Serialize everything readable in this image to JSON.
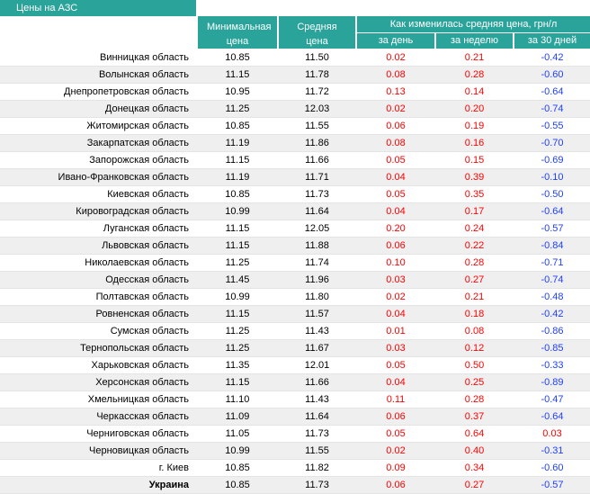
{
  "header": {
    "title": "Цены на АЗС",
    "min": "Минимальная цена",
    "avg": "Средняя цена",
    "change": "Как изменилась средняя цена, грн/л",
    "day": "за день",
    "week": "за неделю",
    "month": "за 30 дней"
  },
  "table": {
    "rows": [
      [
        "Винницкая область",
        "10.85",
        "11.50",
        "0.02",
        "0.21",
        "-0.42"
      ],
      [
        "Волынская область",
        "11.15",
        "11.78",
        "0.08",
        "0.28",
        "-0.60"
      ],
      [
        "Днепропетровская область",
        "10.95",
        "11.72",
        "0.13",
        "0.14",
        "-0.64"
      ],
      [
        "Донецкая область",
        "11.25",
        "12.03",
        "0.02",
        "0.20",
        "-0.74"
      ],
      [
        "Житомирская область",
        "10.85",
        "11.55",
        "0.06",
        "0.19",
        "-0.55"
      ],
      [
        "Закарпатская область",
        "11.19",
        "11.86",
        "0.08",
        "0.16",
        "-0.70"
      ],
      [
        "Запорожская область",
        "11.15",
        "11.66",
        "0.05",
        "0.15",
        "-0.69"
      ],
      [
        "Ивано-Франковская область",
        "11.19",
        "11.71",
        "0.04",
        "0.39",
        "-0.10"
      ],
      [
        "Киевская область",
        "10.85",
        "11.73",
        "0.05",
        "0.35",
        "-0.50"
      ],
      [
        "Кировоградская область",
        "10.99",
        "11.64",
        "0.04",
        "0.17",
        "-0.64"
      ],
      [
        "Луганская область",
        "11.15",
        "12.05",
        "0.20",
        "0.24",
        "-0.57"
      ],
      [
        "Львовская область",
        "11.15",
        "11.88",
        "0.06",
        "0.22",
        "-0.84"
      ],
      [
        "Николаевская область",
        "11.25",
        "11.74",
        "0.10",
        "0.28",
        "-0.71"
      ],
      [
        "Одесская область",
        "11.45",
        "11.96",
        "0.03",
        "0.27",
        "-0.74"
      ],
      [
        "Полтавская область",
        "10.99",
        "11.80",
        "0.02",
        "0.21",
        "-0.48"
      ],
      [
        "Ровненская область",
        "11.15",
        "11.57",
        "0.04",
        "0.18",
        "-0.42"
      ],
      [
        "Сумская область",
        "11.25",
        "11.43",
        "0.01",
        "0.08",
        "-0.86"
      ],
      [
        "Тернопольская область",
        "11.25",
        "11.67",
        "0.03",
        "0.12",
        "-0.85"
      ],
      [
        "Харьковская область",
        "11.35",
        "12.01",
        "0.05",
        "0.50",
        "-0.33"
      ],
      [
        "Херсонская область",
        "11.15",
        "11.66",
        "0.04",
        "0.25",
        "-0.89"
      ],
      [
        "Хмельницкая область",
        "11.10",
        "11.43",
        "0.11",
        "0.28",
        "-0.47"
      ],
      [
        "Черкасская область",
        "11.09",
        "11.64",
        "0.06",
        "0.37",
        "-0.64"
      ],
      [
        "Черниговская область",
        "11.05",
        "11.73",
        "0.05",
        "0.64",
        "0.03"
      ],
      [
        "Черновицкая область",
        "10.99",
        "11.55",
        "0.02",
        "0.40",
        "-0.31"
      ],
      [
        "г. Киев",
        "10.85",
        "11.82",
        "0.09",
        "0.34",
        "-0.60"
      ],
      [
        "Украина",
        "10.85",
        "11.73",
        "0.06",
        "0.27",
        "-0.57"
      ]
    ]
  }
}
